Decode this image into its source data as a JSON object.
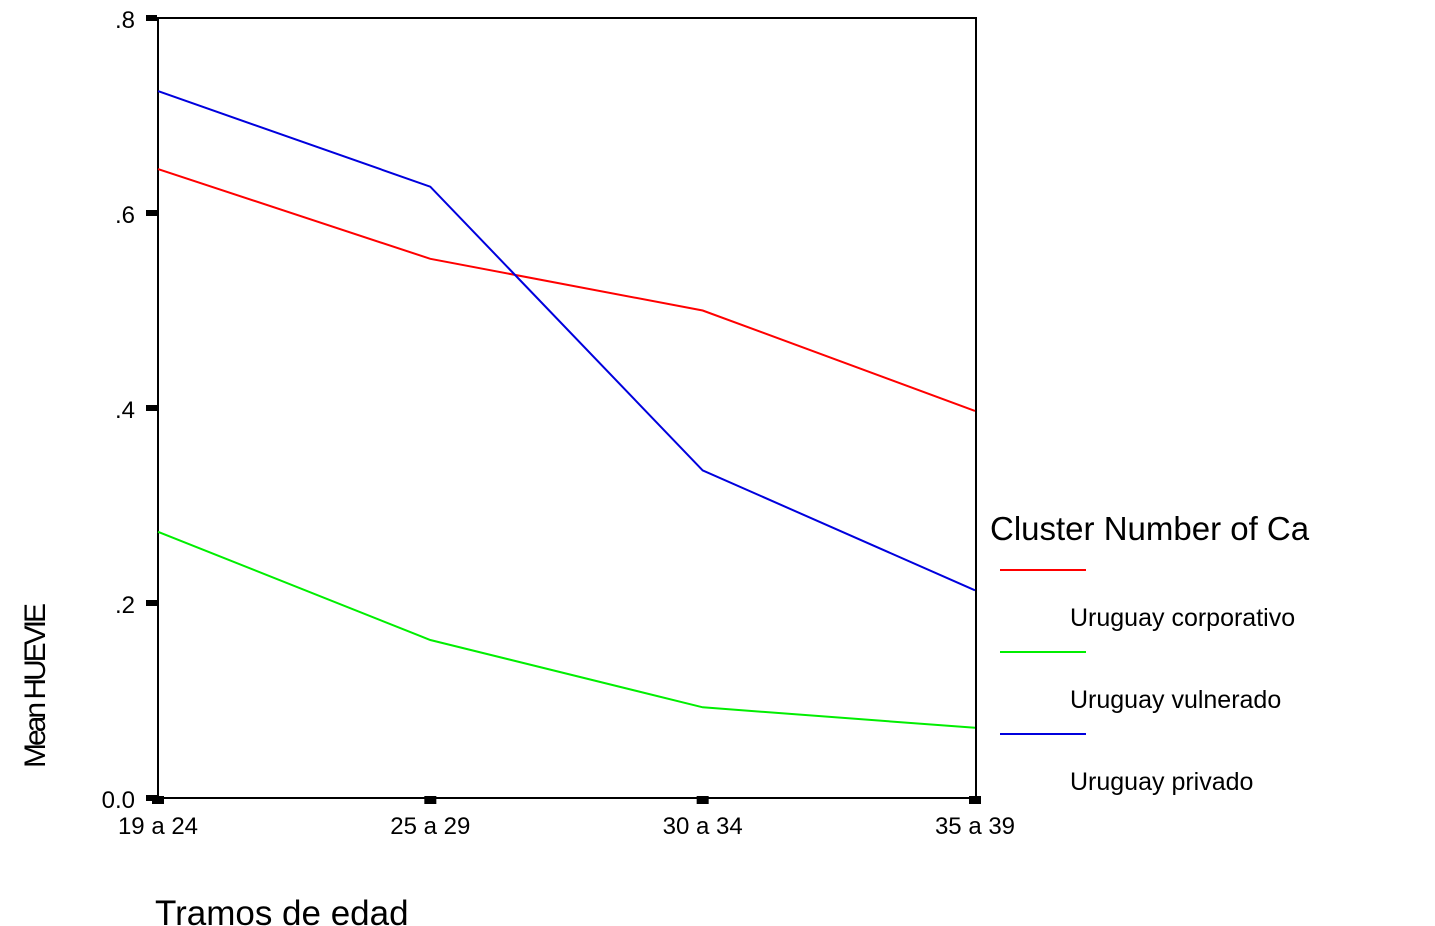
{
  "chart_data": {
    "type": "line",
    "title": "",
    "xlabel": "Tramos de edad",
    "ylabel": "Mean HUEVIE",
    "categories": [
      "19 a 24",
      "25 a 29",
      "30 a 34",
      "35 a 39"
    ],
    "ylim": [
      0,
      0.8
    ],
    "yticks": [
      0,
      0.2,
      0.4,
      0.6,
      0.8
    ],
    "ytick_labels": [
      "0.0",
      ".2",
      ".4",
      ".6",
      ".8"
    ],
    "grid": false,
    "legend": {
      "title": "Cluster Number of Ca",
      "placement": "right"
    },
    "series": [
      {
        "name": "Uruguay corporativo",
        "color": "#ff0000",
        "values": [
          0.645,
          0.553,
          0.5,
          0.397
        ]
      },
      {
        "name": "Uruguay vulnerado",
        "color": "#00ee00",
        "values": [
          0.273,
          0.162,
          0.093,
          0.072
        ]
      },
      {
        "name": "Uruguay privado",
        "color": "#0000dd",
        "values": [
          0.725,
          0.627,
          0.336,
          0.213
        ]
      }
    ]
  }
}
